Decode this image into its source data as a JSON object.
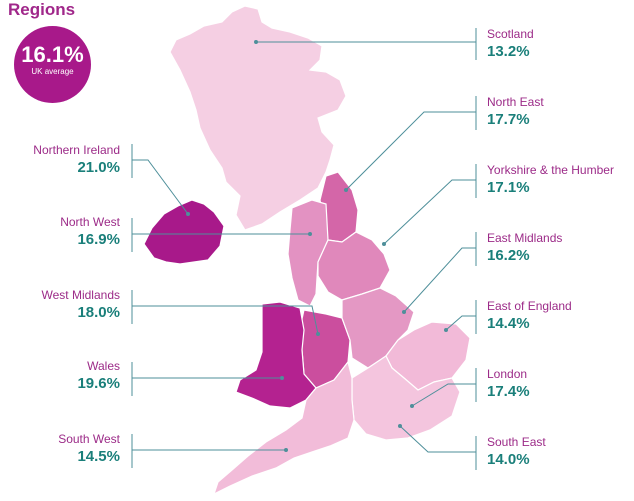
{
  "title": "Regions",
  "uk_average": {
    "value": "16.1%",
    "label": "UK average"
  },
  "colors": {
    "brand": "#a8198a",
    "label": "#9c2b88",
    "value": "#1a7f7a",
    "line": "#4e8f9a"
  },
  "regions": [
    {
      "id": "scotland",
      "name": "Scotland",
      "value": "13.2%",
      "fill": "#f5cfe3"
    },
    {
      "id": "north-east",
      "name": "North East",
      "value": "17.7%",
      "fill": "#d466a8"
    },
    {
      "id": "yorkshire",
      "name": "Yorkshire & the Humber",
      "value": "17.1%",
      "fill": "#e088bb"
    },
    {
      "id": "east-midlands",
      "name": "East Midlands",
      "value": "16.2%",
      "fill": "#e498c4"
    },
    {
      "id": "east-of-england",
      "name": "East of England",
      "value": "14.4%",
      "fill": "#f2bad8"
    },
    {
      "id": "london",
      "name": "London",
      "value": "17.4%",
      "fill": "#c8469a"
    },
    {
      "id": "south-east",
      "name": "South East",
      "value": "14.0%",
      "fill": "#f4c5de"
    },
    {
      "id": "northern-ireland",
      "name": "Northern Ireland",
      "value": "21.0%",
      "fill": "#a8198a"
    },
    {
      "id": "north-west",
      "name": "North West",
      "value": "16.9%",
      "fill": "#e392c2"
    },
    {
      "id": "west-midlands",
      "name": "West Midlands",
      "value": "18.0%",
      "fill": "#cb4e9e"
    },
    {
      "id": "wales",
      "name": "Wales",
      "value": "19.6%",
      "fill": "#b42290"
    },
    {
      "id": "south-west",
      "name": "South West",
      "value": "14.5%",
      "fill": "#f2bcd9"
    }
  ]
}
